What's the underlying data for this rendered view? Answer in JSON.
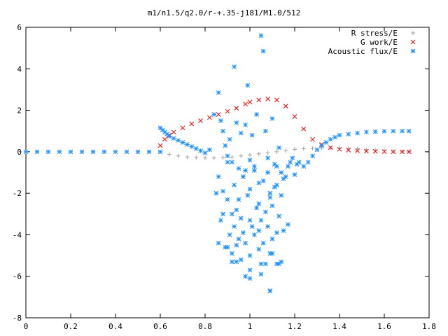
{
  "chart_data": {
    "type": "scatter",
    "title": "m1/n1.5/q2.0/r-+.35-j181/M1.0/512",
    "xlabel": "",
    "ylabel": "",
    "xlim": [
      0,
      1.8
    ],
    "ylim": [
      -8,
      6
    ],
    "x_ticks": [
      "0",
      "0.2",
      "0.4",
      "0.6",
      "0.8",
      "1",
      "1.2",
      "1.4",
      "1.6",
      "1.8"
    ],
    "y_ticks": [
      "6",
      "4",
      "2",
      "0",
      "-2",
      "-4",
      "-6",
      "-8"
    ],
    "grid": false,
    "legend_position": "top-right",
    "series": [
      {
        "name": "R stress/E",
        "marker": "+",
        "color": "#a0a0a0",
        "x": [
          0.6,
          0.64,
          0.68,
          0.72,
          0.76,
          0.8,
          0.84,
          0.88,
          0.92,
          0.96,
          1.0,
          1.04,
          1.08,
          1.12,
          1.16,
          1.2,
          1.24,
          1.28,
          1.32,
          1.36,
          1.4,
          1.44,
          1.48,
          1.52,
          1.56,
          1.6,
          1.64,
          1.68,
          1.71
        ],
        "y": [
          0.0,
          -0.12,
          -0.2,
          -0.25,
          -0.28,
          -0.3,
          -0.3,
          -0.28,
          -0.25,
          -0.2,
          -0.15,
          -0.1,
          -0.05,
          0.0,
          0.05,
          0.12,
          0.15,
          0.17,
          0.18,
          0.18,
          0.18,
          0.16,
          0.14,
          0.1,
          0.08,
          0.05,
          0.03,
          0.02,
          0.02
        ]
      },
      {
        "name": "G work/E",
        "marker": "x",
        "color": "#ff0000",
        "x": [
          0.6,
          0.62,
          0.64,
          0.66,
          0.7,
          0.74,
          0.78,
          0.82,
          0.86,
          0.9,
          0.94,
          0.98,
          1.0,
          1.04,
          1.08,
          1.12,
          1.16,
          1.2,
          1.24,
          1.28,
          1.32,
          1.36,
          1.4,
          1.44,
          1.48,
          1.52,
          1.56,
          1.6,
          1.64,
          1.68,
          1.71
        ],
        "y": [
          0.3,
          0.6,
          0.8,
          0.95,
          1.15,
          1.35,
          1.5,
          1.65,
          1.8,
          1.95,
          2.1,
          2.3,
          2.4,
          2.5,
          2.55,
          2.5,
          2.2,
          1.7,
          1.1,
          0.6,
          0.35,
          0.2,
          0.12,
          0.08,
          0.05,
          0.03,
          0.02,
          0.01,
          0.0,
          0.0,
          0.0
        ]
      },
      {
        "name": "Acoustic flux/E",
        "marker": "*",
        "color": "#1e90ff",
        "x": [
          0.0,
          0.05,
          0.1,
          0.15,
          0.2,
          0.25,
          0.3,
          0.35,
          0.4,
          0.45,
          0.5,
          0.55,
          0.6,
          0.6,
          0.61,
          0.62,
          0.63,
          0.64,
          0.66,
          0.68,
          0.7,
          0.72,
          0.74,
          0.76,
          0.78,
          0.8,
          0.82,
          0.84,
          0.86,
          0.87,
          0.88,
          0.89,
          0.9,
          0.91,
          0.92,
          0.93,
          0.94,
          0.95,
          0.96,
          0.97,
          0.98,
          0.99,
          1.0,
          1.01,
          1.02,
          1.03,
          1.04,
          1.05,
          1.06,
          1.07,
          1.08,
          1.09,
          1.1,
          1.11,
          1.12,
          1.13,
          1.14,
          1.15,
          1.16,
          1.17,
          1.18,
          1.19,
          1.2,
          1.21,
          1.22,
          1.24,
          1.26,
          1.28,
          1.3,
          1.32,
          1.34,
          1.36,
          1.38,
          1.4,
          1.44,
          1.48,
          1.52,
          1.56,
          1.6,
          1.64,
          1.68,
          1.71,
          0.86,
          0.88,
          0.9,
          0.93,
          0.95,
          0.97,
          0.98,
          1.0,
          1.02,
          1.04,
          1.06,
          1.08,
          1.09,
          1.11,
          1.12,
          1.14,
          0.85,
          0.87,
          0.9,
          0.92,
          0.94,
          0.96,
          0.99,
          1.01,
          1.03,
          1.05,
          1.07,
          1.1,
          1.13,
          1.15,
          1.17,
          0.88,
          0.91,
          0.93,
          0.95,
          0.97,
          1.0,
          1.02,
          1.04,
          1.06,
          1.08,
          1.1,
          1.12,
          0.89,
          0.92,
          0.96,
          0.98,
          1.0,
          1.04,
          1.07,
          1.09,
          1.12,
          0.86,
          0.9,
          0.94,
          1.0,
          1.05,
          1.1,
          1.14,
          0.92,
          0.98,
          1.05,
          1.09,
          1.13,
          0.94,
          1.0,
          1.09
        ],
        "y": [
          0,
          0,
          0,
          0,
          0,
          0,
          0,
          0,
          0,
          0,
          0,
          0,
          0,
          1.15,
          1.05,
          0.95,
          0.85,
          0.75,
          0.65,
          0.55,
          0.45,
          0.35,
          0.25,
          0.15,
          0.05,
          -0.05,
          0.1,
          1.8,
          2.85,
          1.5,
          1.0,
          0.3,
          -0.2,
          0.6,
          -0.5,
          4.1,
          1.4,
          -0.8,
          0.9,
          -1.2,
          1.3,
          3.2,
          -0.4,
          0.8,
          -0.9,
          1.8,
          -1.5,
          5.6,
          4.85,
          1.0,
          -0.3,
          -2.0,
          1.6,
          -1.7,
          -0.7,
          0.2,
          -1.0,
          -1.3,
          -1.2,
          -0.7,
          -0.5,
          -0.3,
          -1.1,
          -0.6,
          -0.5,
          -0.7,
          -0.5,
          -0.2,
          0.1,
          0.3,
          0.45,
          0.6,
          0.7,
          0.8,
          0.85,
          0.9,
          0.95,
          0.97,
          0.99,
          1.0,
          1.0,
          1.0,
          -1.2,
          -1.9,
          -0.5,
          -1.6,
          -2.3,
          -1.2,
          -0.9,
          -1.8,
          -0.7,
          -2.5,
          -1.4,
          -1.0,
          -2.2,
          -0.6,
          -1.6,
          -2.1,
          -2.0,
          -3.3,
          -2.3,
          -3.0,
          -2.8,
          -3.2,
          -2.1,
          -3.6,
          -2.7,
          -3.3,
          -2.9,
          -2.6,
          -3.1,
          -3.8,
          -3.5,
          -3.0,
          -4.0,
          -3.6,
          -4.2,
          -3.9,
          -3.3,
          -4.0,
          -3.8,
          -4.4,
          -3.6,
          -4.2,
          -3.9,
          -4.6,
          -4.9,
          -5.2,
          -4.4,
          -5.0,
          -4.7,
          -5.4,
          -4.9,
          -5.4,
          -4.4,
          -4.6,
          -5.3,
          -5.7,
          -5.4,
          -4.9,
          -5.3,
          -5.3,
          -6.0,
          -5.9,
          -6.7,
          -5.4,
          -4.5,
          -6.1,
          -6.7
        ]
      }
    ]
  }
}
